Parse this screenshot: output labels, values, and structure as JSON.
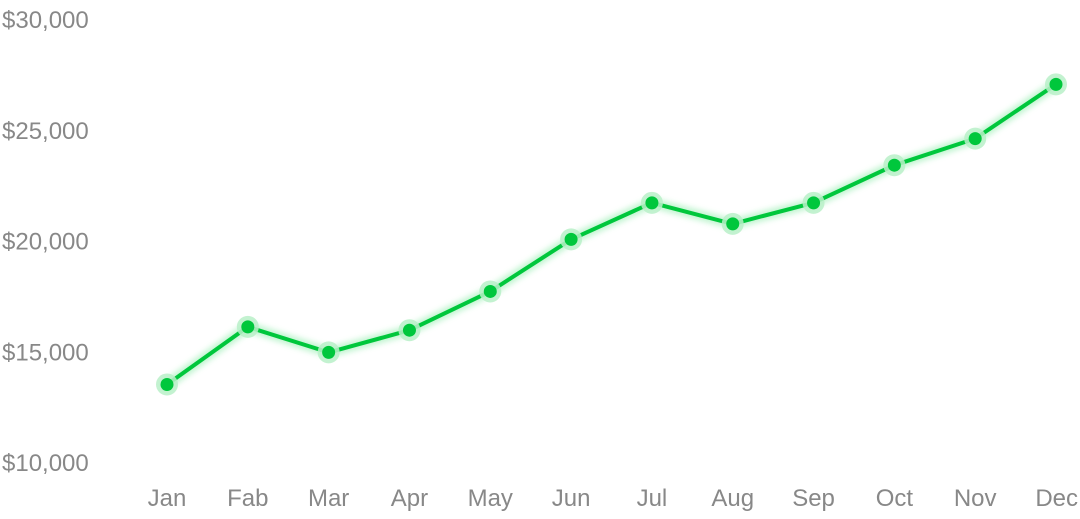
{
  "chart_data": {
    "type": "line",
    "categories": [
      "Jan",
      "Fab",
      "Mar",
      "Apr",
      "May",
      "Jun",
      "Jul",
      "Aug",
      "Sep",
      "Oct",
      "Nov",
      "Dec"
    ],
    "series": [
      {
        "values": [
          13500,
          16100,
          14950,
          15950,
          17700,
          20050,
          21700,
          20750,
          21700,
          23400,
          24600,
          27050
        ]
      }
    ],
    "y_ticks": [
      "$10,000",
      "$15,000",
      "$20,000",
      "$25,000",
      "$30,000"
    ],
    "y_tick_values": [
      10000,
      15000,
      20000,
      25000,
      30000
    ],
    "ylim": [
      10000,
      30000
    ],
    "grid": false,
    "legend": "none",
    "colors": {
      "line": "#00c73c",
      "marker": "#00c73c",
      "marker_halo": "#b8f0c8",
      "glow": "#a6f0bc",
      "tick_text": "#888888"
    }
  }
}
